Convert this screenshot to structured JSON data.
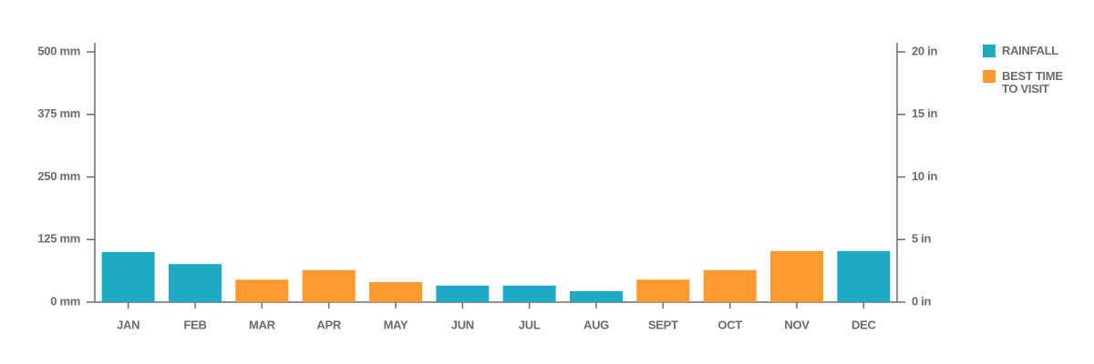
{
  "chart_data": {
    "type": "bar",
    "categories": [
      "JAN",
      "FEB",
      "MAR",
      "APR",
      "MAY",
      "JUN",
      "JUL",
      "AUG",
      "SEPT",
      "OCT",
      "NOV",
      "DEC"
    ],
    "series": [
      {
        "name": "RAINFALL",
        "color": "#1eaac4",
        "values": [
          100,
          76,
          null,
          null,
          null,
          33,
          33,
          22,
          null,
          null,
          null,
          102
        ]
      },
      {
        "name": "BEST TIME TO VISIT",
        "color": "#fe9a30",
        "values": [
          null,
          null,
          45,
          64,
          40,
          null,
          null,
          null,
          45,
          64,
          102,
          null
        ]
      }
    ],
    "ylim": [
      0,
      500
    ],
    "yticks": [
      {
        "value": 0,
        "label": "0 mm"
      },
      {
        "value": 125,
        "label": "125 mm"
      },
      {
        "value": 250,
        "label": "250 mm"
      },
      {
        "value": 375,
        "label": "375 mm"
      },
      {
        "value": 500,
        "label": "500 mm"
      }
    ],
    "y2lim": [
      0,
      20
    ],
    "y2ticks": [
      {
        "value": 0,
        "label": "0 in"
      },
      {
        "value": 5,
        "label": "5 in"
      },
      {
        "value": 10,
        "label": "10 in"
      },
      {
        "value": 15,
        "label": "15 in"
      },
      {
        "value": 20,
        "label": "20 in"
      }
    ],
    "legend": "right"
  }
}
